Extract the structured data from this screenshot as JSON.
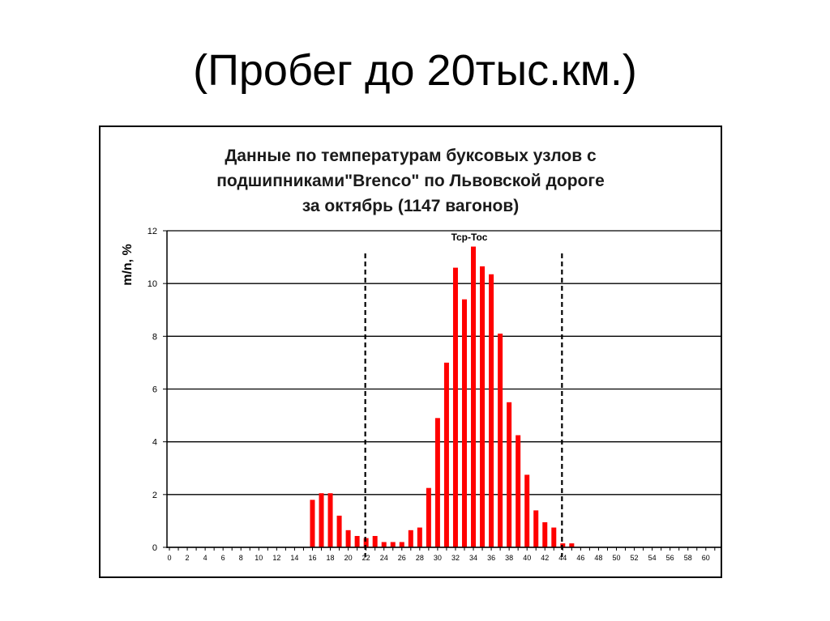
{
  "slide": {
    "title": "(Пробег до 20тыс.км.)"
  },
  "chart_data": {
    "type": "bar",
    "title": "Данные по температурам буксовых узлов с подшипниками\"Brenco\" по Львовской дороге за октябрь (1147 вагонов)",
    "title_lines": [
      "Данные по температурам буксовых узлов с",
      "подшипниками\"Brenco\" по Львовской дороге",
      "за октябрь (1147 вагонов)"
    ],
    "xlabel": "",
    "ylabel": "m/n, %",
    "xlim": [
      0,
      61
    ],
    "ylim": [
      0,
      12
    ],
    "y_ticks": [
      0,
      2,
      4,
      6,
      8,
      10,
      12
    ],
    "x_tick_labels": [
      0,
      2,
      4,
      6,
      8,
      10,
      12,
      14,
      16,
      18,
      20,
      22,
      24,
      26,
      28,
      30,
      32,
      34,
      36,
      38,
      40,
      42,
      44,
      46,
      48,
      50,
      52,
      54,
      56,
      58,
      60
    ],
    "grid": "horizontal",
    "bar_color": "#ff0000",
    "categories": [
      16,
      17,
      18,
      19,
      20,
      21,
      22,
      23,
      24,
      25,
      26,
      27,
      28,
      29,
      30,
      31,
      32,
      33,
      34,
      35,
      36,
      37,
      38,
      39,
      40,
      41,
      42,
      43,
      44,
      45
    ],
    "values": [
      1.8,
      2.05,
      2.05,
      1.2,
      0.65,
      0.43,
      0.35,
      0.43,
      0.2,
      0.2,
      0.2,
      0.65,
      0.75,
      2.25,
      4.9,
      7.0,
      10.6,
      9.4,
      11.4,
      10.65,
      10.35,
      8.1,
      5.5,
      4.25,
      2.75,
      1.4,
      0.95,
      0.75,
      0.15,
      0.15
    ],
    "annotations": [
      {
        "text": "Tcp-Toc",
        "x": 34,
        "y": 12
      },
      {
        "type": "vline",
        "style": "dashed",
        "x": 22
      },
      {
        "type": "vline",
        "style": "dashed",
        "x": 44
      }
    ],
    "legend": null
  }
}
